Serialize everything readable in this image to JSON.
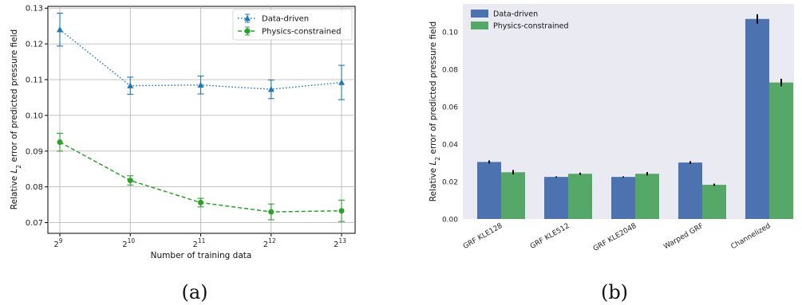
{
  "chart_data": [
    {
      "type": "line",
      "panel_label": "(a)",
      "x": [
        512,
        1024,
        2048,
        4096,
        8192
      ],
      "x_tick_labels": [
        {
          "base": "2",
          "exp": "9"
        },
        {
          "base": "2",
          "exp": "10"
        },
        {
          "base": "2",
          "exp": "11"
        },
        {
          "base": "2",
          "exp": "12"
        },
        {
          "base": "2",
          "exp": "13"
        }
      ],
      "xscale": "log2",
      "xlabel": "Number of training data",
      "ylabel_parts": [
        "Relative ",
        "L",
        "2",
        " error of predicted pressure field"
      ],
      "ylim": [
        0.067,
        0.1305
      ],
      "y_ticks": [
        0.07,
        0.08,
        0.09,
        0.1,
        0.11,
        0.12,
        0.13
      ],
      "y_tick_labels": [
        "0.07",
        "0.08",
        "0.09",
        "0.10",
        "0.11",
        "0.12",
        "0.13"
      ],
      "grid": true,
      "legend_position": "top-right",
      "series": [
        {
          "name": "Data-driven",
          "color": "#1f77b4",
          "marker": "triangle",
          "linestyle": "dotted",
          "values": [
            0.124,
            0.1083,
            0.1085,
            0.1073,
            0.1092
          ],
          "errors": [
            0.0046,
            0.0024,
            0.0025,
            0.0026,
            0.0048
          ]
        },
        {
          "name": "Physics-constrained",
          "color": "#2ca02c",
          "marker": "circle",
          "linestyle": "dashed",
          "values": [
            0.0925,
            0.0818,
            0.0756,
            0.073,
            0.0733
          ],
          "errors": [
            0.0025,
            0.0013,
            0.0012,
            0.0022,
            0.003
          ]
        }
      ]
    },
    {
      "type": "bar",
      "panel_label": "(b)",
      "categories": [
        "GRF KLE128",
        "GRF KLE512",
        "GRF KLE2048",
        "Warped GRF",
        "Channelized"
      ],
      "ylabel_parts": [
        "Relative ",
        "L",
        "2",
        " error of predicted pressure field"
      ],
      "ylim": [
        0,
        0.115
      ],
      "y_ticks": [
        0,
        0.02,
        0.04,
        0.06,
        0.08,
        0.1
      ],
      "y_tick_labels": [
        "0.00",
        "0.02",
        "0.04",
        "0.06",
        "0.08",
        "0.10"
      ],
      "grid": false,
      "legend_position": "top-left",
      "series": [
        {
          "name": "Data-driven",
          "color": "#4c72b0",
          "values": [
            0.0305,
            0.0225,
            0.0225,
            0.0302,
            0.107
          ],
          "errors": [
            0.0008,
            0.0003,
            0.0003,
            0.0007,
            0.0025
          ]
        },
        {
          "name": "Physics-constrained",
          "color": "#55a868",
          "values": [
            0.025,
            0.0242,
            0.0242,
            0.0183,
            0.073
          ],
          "errors": [
            0.0012,
            0.0006,
            0.0009,
            0.0006,
            0.002
          ]
        }
      ]
    }
  ]
}
